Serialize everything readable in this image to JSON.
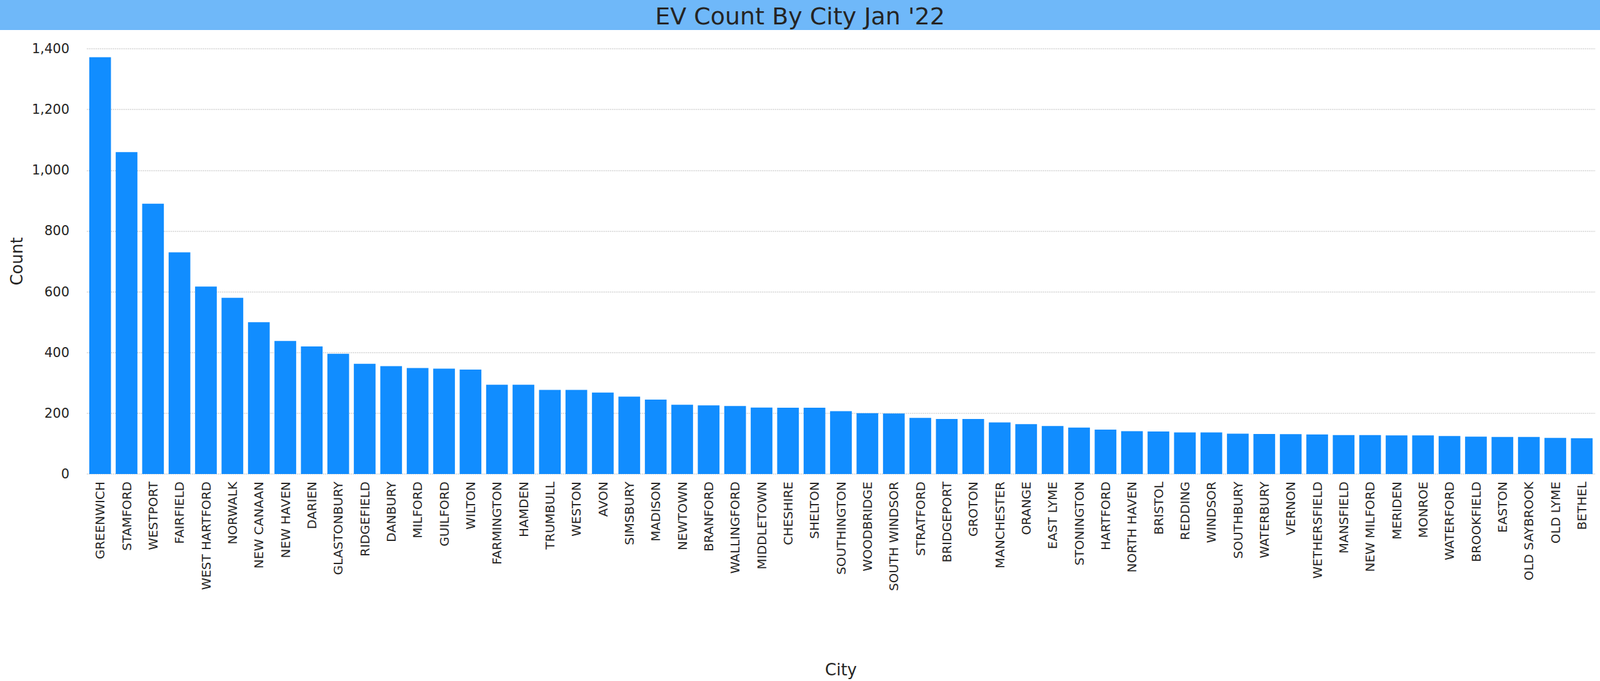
{
  "chart_data": {
    "type": "bar",
    "title": "EV Count By City Jan '22",
    "x_label": "City",
    "y_label": "Count",
    "categories": [
      "GREENWICH",
      "STAMFORD",
      "WESTPORT",
      "FAIRFIELD",
      "WEST HARTFORD",
      "NORWALK",
      "NEW CANAAN",
      "NEW HAVEN",
      "DARIEN",
      "GLASTONBURY",
      "RIDGEFIELD",
      "DANBURY",
      "MILFORD",
      "GUILFORD",
      "WILTON",
      "FARMINGTON",
      "HAMDEN",
      "TRUMBULL",
      "WESTON",
      "AVON",
      "SIMSBURY",
      "MADISON",
      "NEWTOWN",
      "BRANFORD",
      "WALLINGFORD",
      "MIDDLETOWN",
      "CHESHIRE",
      "SHELTON",
      "SOUTHINGTON",
      "WOODBRIDGE",
      "SOUTH WINDSOR",
      "STRATFORD",
      "BRIDGEPORT",
      "GROTON",
      "MANCHESTER",
      "ORANGE",
      "EAST LYME",
      "STONINGTON",
      "HARTFORD",
      "NORTH HAVEN",
      "BRISTOL",
      "REDDING",
      "WINDSOR",
      "SOUTHBURY",
      "WATERBURY",
      "VERNON",
      "WETHERSFIELD",
      "MANSFIELD",
      "NEW MILFORD",
      "MERIDEN",
      "MONROE",
      "WATERFORD",
      "BROOKFIELD",
      "EASTON",
      "OLD SAYBROOK",
      "OLD LYME",
      "BETHEL"
    ],
    "values": [
      1372,
      1060,
      890,
      730,
      617,
      580,
      500,
      438,
      420,
      396,
      363,
      355,
      349,
      347,
      344,
      294,
      294,
      277,
      277,
      268,
      255,
      245,
      228,
      226,
      224,
      219,
      218,
      218,
      207,
      200,
      199,
      185,
      181,
      181,
      170,
      164,
      158,
      153,
      146,
      141,
      140,
      137,
      137,
      133,
      132,
      131,
      130,
      128,
      128,
      127,
      127,
      125,
      123,
      122,
      122,
      119,
      118
    ],
    "color": "#118dff",
    "ylim": [
      0,
      1400
    ],
    "yticks": [
      0,
      200,
      400,
      600,
      800,
      1000,
      1200,
      1400
    ],
    "grid": true,
    "data_labels": false
  }
}
